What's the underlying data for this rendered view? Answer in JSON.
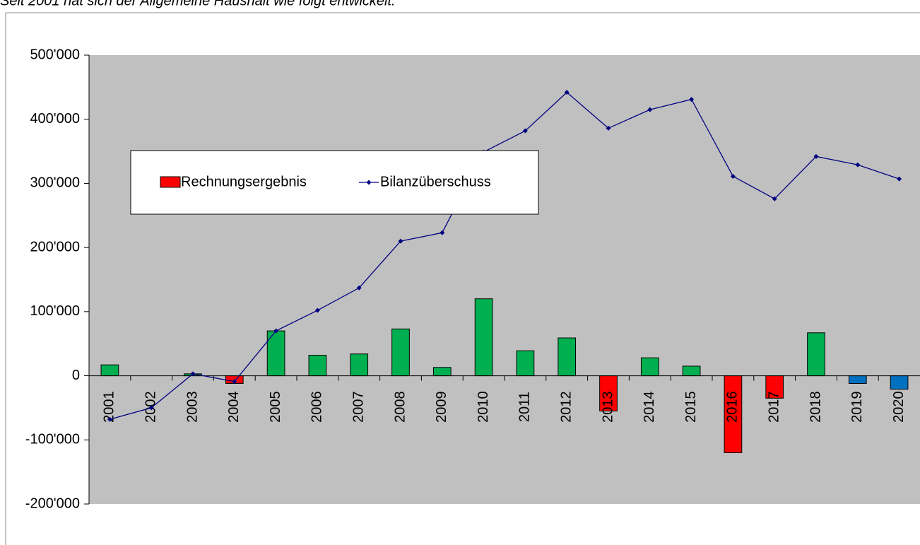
{
  "chart_data": {
    "type": "bar_line",
    "subtitle": "Seit 2001 hat sich der Allgemeine Haushalt wie folgt entwickelt.",
    "categories": [
      "2001",
      "2002",
      "2003",
      "2004",
      "2005",
      "2006",
      "2007",
      "2008",
      "2009",
      "2010",
      "2011",
      "2012",
      "2013",
      "2014",
      "2015",
      "2016",
      "2017",
      "2018",
      "2019",
      "2020"
    ],
    "series": [
      {
        "name": "Rechnungsergebnis",
        "type": "bar",
        "color": "#ff0000",
        "colors": [
          "#00b050",
          "#00b050",
          "#00b050",
          "#ff0000",
          "#00b050",
          "#00b050",
          "#00b050",
          "#00b050",
          "#00b050",
          "#00b050",
          "#00b050",
          "#00b050",
          "#ff0000",
          "#00b050",
          "#00b050",
          "#ff0000",
          "#ff0000",
          "#00b050",
          "#0070c0",
          "#0070c0"
        ],
        "values": [
          17000,
          0,
          3000,
          -12000,
          70000,
          32000,
          34000,
          73000,
          13000,
          120000,
          39000,
          59000,
          -55000,
          28000,
          15000,
          -120000,
          -35000,
          67000,
          -12000,
          -21000
        ]
      },
      {
        "name": "Bilanzüberschuss",
        "type": "line",
        "color": "#000080",
        "values": [
          -68000,
          -50000,
          3000,
          -9000,
          70000,
          102000,
          137000,
          210000,
          223000,
          349000,
          382000,
          442000,
          386000,
          415000,
          431000,
          311000,
          276000,
          342000,
          329000,
          307000
        ]
      }
    ],
    "ylim": [
      -200000,
      500000
    ],
    "yticks": [
      {
        "value": -200000,
        "label": "-200'000"
      },
      {
        "value": -100000,
        "label": "-100'000"
      },
      0,
      {
        "value": 100000,
        "label": "100'000"
      },
      {
        "value": 200000,
        "label": "200'000"
      },
      {
        "value": 300000,
        "label": "300'000"
      },
      {
        "value": 400000,
        "label": "400'000"
      },
      {
        "value": 500000,
        "label": "500'000"
      }
    ],
    "grid": false,
    "legend": "upper left",
    "plot_background": "#c0c0c0"
  }
}
